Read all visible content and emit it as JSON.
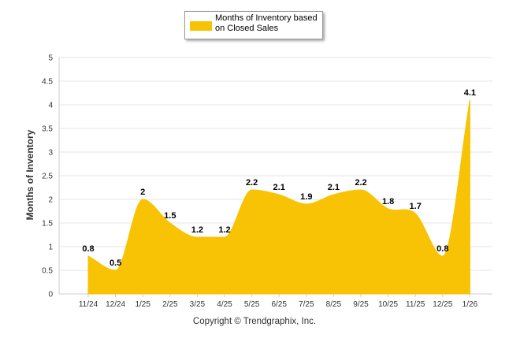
{
  "chart_data": {
    "type": "area",
    "title": "",
    "xlabel": "",
    "ylabel": "Months of Inventory",
    "categories": [
      "11/24",
      "12/24",
      "1/25",
      "2/25",
      "3/25",
      "4/25",
      "5/25",
      "6/25",
      "7/25",
      "8/25",
      "9/25",
      "10/25",
      "11/25",
      "12/25",
      "1/26"
    ],
    "series": [
      {
        "name": "Months of Inventory based on Closed Sales",
        "values": [
          0.8,
          0.5,
          2,
          1.5,
          1.2,
          1.2,
          2.2,
          2.1,
          1.9,
          2.1,
          2.2,
          1.8,
          1.7,
          0.8,
          4.1
        ]
      }
    ],
    "data_labels": [
      "0.8",
      "0.5",
      "2",
      "1.5",
      "1.2",
      "1.2",
      "2.2",
      "2.1",
      "1.9",
      "2.1",
      "2.2",
      "1.8",
      "1.7",
      "0.8",
      "4.1"
    ],
    "ylim": [
      0,
      5
    ],
    "yticks": [
      0,
      0.5,
      1,
      1.5,
      2,
      2.5,
      3,
      3.5,
      4,
      4.5,
      5
    ],
    "ytick_labels": [
      "0",
      "0.5",
      "1",
      "1.5",
      "2",
      "2.5",
      "3",
      "3.5",
      "4",
      "4.5",
      "5"
    ],
    "grid": true,
    "legend_position": "top-center",
    "colors": {
      "series": "#f7c304",
      "grid": "#e6e6e6",
      "axis": "#cccccc"
    }
  },
  "legend": {
    "label_line1": "Months of Inventory based",
    "label_line2": "on Closed Sales"
  },
  "footer": {
    "copyright": "Copyright © Trendgraphix, Inc."
  }
}
